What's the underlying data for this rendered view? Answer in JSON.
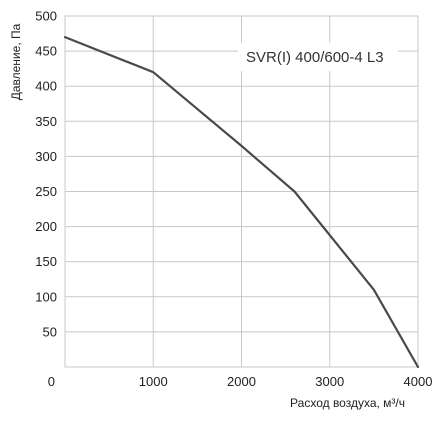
{
  "chart_data": {
    "type": "line",
    "title": "",
    "annotation": "SVR(I) 400/600-4 L3",
    "xlabel": "Расход воздуха, м³/ч",
    "ylabel": "Давление, Па",
    "xlim": [
      0,
      4000
    ],
    "ylim": [
      0,
      500
    ],
    "xticks": [
      0,
      1000,
      2000,
      3000,
      4000
    ],
    "yticks": [
      0,
      50,
      100,
      150,
      200,
      250,
      300,
      350,
      400,
      450,
      500
    ],
    "xtick_labels": [
      "0",
      "1000",
      "2000",
      "3000",
      "4000"
    ],
    "ytick_labels": [
      "",
      "50",
      "100",
      "150",
      "200",
      "250",
      "300",
      "350",
      "400",
      "450",
      "500"
    ],
    "grid": true,
    "series": [
      {
        "color": "#4a4a4a",
        "x": [
          0,
          1000,
          2000,
          2600,
          3500,
          4000
        ],
        "y": [
          470,
          420,
          315,
          250,
          110,
          0
        ]
      }
    ]
  }
}
